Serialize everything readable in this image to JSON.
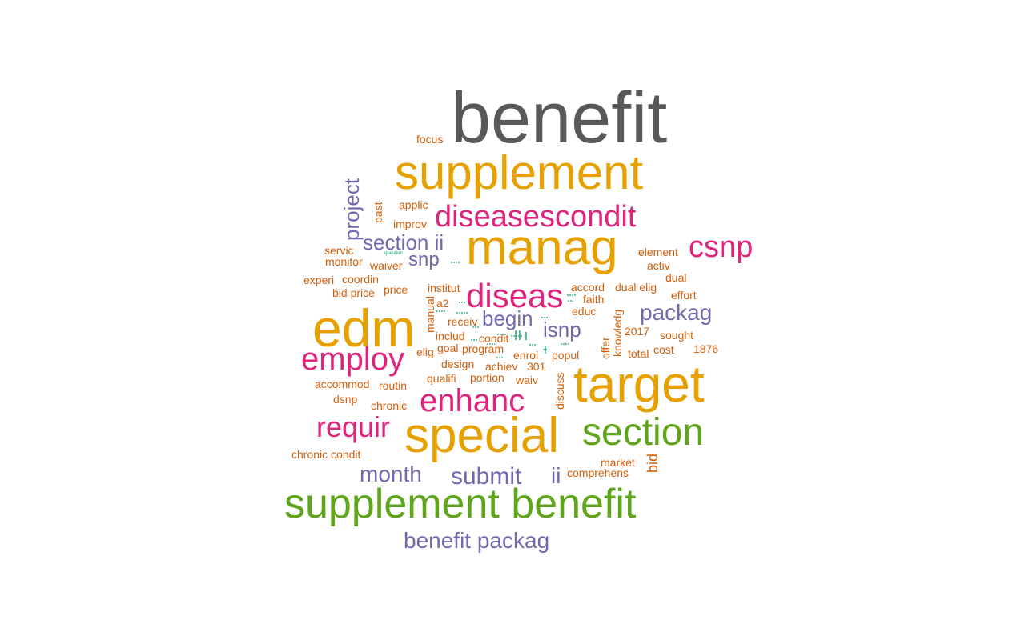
{
  "colors": {
    "gray": "#595959",
    "orange": "#e6a100",
    "magenta": "#e0237c",
    "green": "#5ea51b",
    "purple": "#6f6aae",
    "brown": "#d35f0a",
    "teal": "#1b9e77"
  },
  "words": [
    {
      "text": "benefit",
      "color": "gray",
      "weight": 1.0
    },
    {
      "text": "supplement",
      "color": "orange",
      "weight": 0.64
    },
    {
      "text": "diseasescondit",
      "color": "magenta",
      "weight": 0.42
    },
    {
      "text": "manag",
      "color": "orange",
      "weight": 0.64
    },
    {
      "text": "csnp",
      "color": "magenta",
      "weight": 0.4
    },
    {
      "text": "project",
      "color": "purple",
      "weight": 0.3
    },
    {
      "text": "section ii",
      "color": "purple",
      "weight": 0.28
    },
    {
      "text": "snp",
      "color": "purple",
      "weight": 0.26
    },
    {
      "text": "diseas",
      "color": "magenta",
      "weight": 0.44
    },
    {
      "text": "edm",
      "color": "orange",
      "weight": 0.68
    },
    {
      "text": "packag",
      "color": "purple",
      "weight": 0.3
    },
    {
      "text": "begin",
      "color": "purple",
      "weight": 0.28
    },
    {
      "text": "isnp",
      "color": "purple",
      "weight": 0.28
    },
    {
      "text": "employ",
      "color": "magenta",
      "weight": 0.42
    },
    {
      "text": "target",
      "color": "orange",
      "weight": 0.66
    },
    {
      "text": "enhanc",
      "color": "magenta",
      "weight": 0.42
    },
    {
      "text": "requir",
      "color": "magenta",
      "weight": 0.38
    },
    {
      "text": "special",
      "color": "orange",
      "weight": 0.66
    },
    {
      "text": "section",
      "color": "green",
      "weight": 0.5
    },
    {
      "text": "month",
      "color": "purple",
      "weight": 0.3
    },
    {
      "text": "submit",
      "color": "purple",
      "weight": 0.32
    },
    {
      "text": "ii",
      "color": "purple",
      "weight": 0.28
    },
    {
      "text": "supplement benefit",
      "color": "green",
      "weight": 0.56
    },
    {
      "text": "benefit packag",
      "color": "purple",
      "weight": 0.32
    },
    {
      "text": "focus",
      "color": "brown",
      "weight": 0.16
    },
    {
      "text": "applic",
      "color": "brown",
      "weight": 0.16
    },
    {
      "text": "improv",
      "color": "brown",
      "weight": 0.16
    },
    {
      "text": "past",
      "color": "brown",
      "weight": 0.16
    },
    {
      "text": "servic",
      "color": "brown",
      "weight": 0.16
    },
    {
      "text": "monitor",
      "color": "brown",
      "weight": 0.16
    },
    {
      "text": "waiver",
      "color": "brown",
      "weight": 0.16
    },
    {
      "text": "experi",
      "color": "brown",
      "weight": 0.16
    },
    {
      "text": "coordin",
      "color": "brown",
      "weight": 0.16
    },
    {
      "text": "bid price",
      "color": "brown",
      "weight": 0.16
    },
    {
      "text": "price",
      "color": "brown",
      "weight": 0.16
    },
    {
      "text": "institut",
      "color": "brown",
      "weight": 0.16
    },
    {
      "text": "a2",
      "color": "brown",
      "weight": 0.16
    },
    {
      "text": "manual",
      "color": "brown",
      "weight": 0.16
    },
    {
      "text": "receiv",
      "color": "brown",
      "weight": 0.16
    },
    {
      "text": "includ",
      "color": "brown",
      "weight": 0.16
    },
    {
      "text": "condit",
      "color": "brown",
      "weight": 0.16
    },
    {
      "text": "goal",
      "color": "brown",
      "weight": 0.16
    },
    {
      "text": "program",
      "color": "brown",
      "weight": 0.16
    },
    {
      "text": "elig",
      "color": "brown",
      "weight": 0.16
    },
    {
      "text": "enrol",
      "color": "brown",
      "weight": 0.16
    },
    {
      "text": "popul",
      "color": "brown",
      "weight": 0.16
    },
    {
      "text": "design",
      "color": "brown",
      "weight": 0.16
    },
    {
      "text": "achiev",
      "color": "brown",
      "weight": 0.16
    },
    {
      "text": "301",
      "color": "brown",
      "weight": 0.16
    },
    {
      "text": "qualifi",
      "color": "brown",
      "weight": 0.16
    },
    {
      "text": "portion",
      "color": "brown",
      "weight": 0.16
    },
    {
      "text": "waiv",
      "color": "brown",
      "weight": 0.16
    },
    {
      "text": "discuss",
      "color": "brown",
      "weight": 0.16
    },
    {
      "text": "accommod",
      "color": "brown",
      "weight": 0.16
    },
    {
      "text": "routin",
      "color": "brown",
      "weight": 0.16
    },
    {
      "text": "dsnp",
      "color": "brown",
      "weight": 0.16
    },
    {
      "text": "chronic",
      "color": "brown",
      "weight": 0.16
    },
    {
      "text": "chronic condit",
      "color": "brown",
      "weight": 0.16
    },
    {
      "text": "element",
      "color": "brown",
      "weight": 0.16
    },
    {
      "text": "activ",
      "color": "brown",
      "weight": 0.16
    },
    {
      "text": "dual",
      "color": "brown",
      "weight": 0.16
    },
    {
      "text": "accord",
      "color": "brown",
      "weight": 0.16
    },
    {
      "text": "dual elig",
      "color": "brown",
      "weight": 0.16
    },
    {
      "text": "effort",
      "color": "brown",
      "weight": 0.16
    },
    {
      "text": "faith",
      "color": "brown",
      "weight": 0.16
    },
    {
      "text": "educ",
      "color": "brown",
      "weight": 0.16
    },
    {
      "text": "knowledg",
      "color": "brown",
      "weight": 0.16
    },
    {
      "text": "offer",
      "color": "brown",
      "weight": 0.16
    },
    {
      "text": "2017",
      "color": "brown",
      "weight": 0.16
    },
    {
      "text": "sought",
      "color": "brown",
      "weight": 0.16
    },
    {
      "text": "total",
      "color": "brown",
      "weight": 0.16
    },
    {
      "text": "cost",
      "color": "brown",
      "weight": 0.16
    },
    {
      "text": "1876",
      "color": "brown",
      "weight": 0.16
    },
    {
      "text": "bid",
      "color": "brown",
      "weight": 0.2
    },
    {
      "text": "market",
      "color": "brown",
      "weight": 0.16
    },
    {
      "text": "comprehens",
      "color": "brown",
      "weight": 0.16
    },
    {
      "text": "question",
      "color": "teal",
      "weight": 0.05
    }
  ]
}
